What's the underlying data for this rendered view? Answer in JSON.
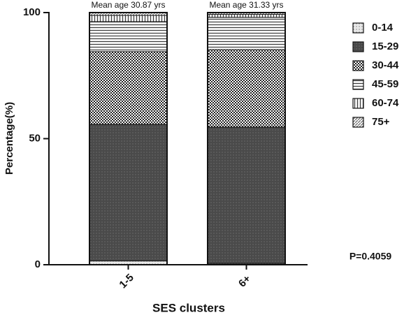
{
  "chart_data": {
    "type": "stacked-bar",
    "x_label": "SES clusters",
    "y_label": "Percentage(%)",
    "categories": [
      "1-5",
      "6+"
    ],
    "series": [
      {
        "name": "0-14",
        "color": "#e8e8e8",
        "values": [
          1.5,
          0.5
        ]
      },
      {
        "name": "15-29",
        "color": "#4a4a4a",
        "values": [
          54.2,
          54.1
        ]
      },
      {
        "name": "30-44",
        "color": "#222222",
        "values": [
          28.8,
          30.7
        ]
      },
      {
        "name": "45-59",
        "color": "#f2f2f2",
        "values": [
          11.9,
          12.8
        ]
      },
      {
        "name": "60-74",
        "color": "#f0f0f0",
        "values": [
          2.5,
          1.2
        ]
      },
      {
        "name": "75+",
        "color": "#777777",
        "values": [
          1.1,
          0.7
        ]
      }
    ],
    "ylim": [
      0,
      100
    ],
    "yticks": [
      0,
      50,
      100
    ],
    "bar_annotations": [
      "Mean age 30.87 yrs",
      "Mean age 31.33 yrs"
    ],
    "annotation": "P=0.4059"
  }
}
